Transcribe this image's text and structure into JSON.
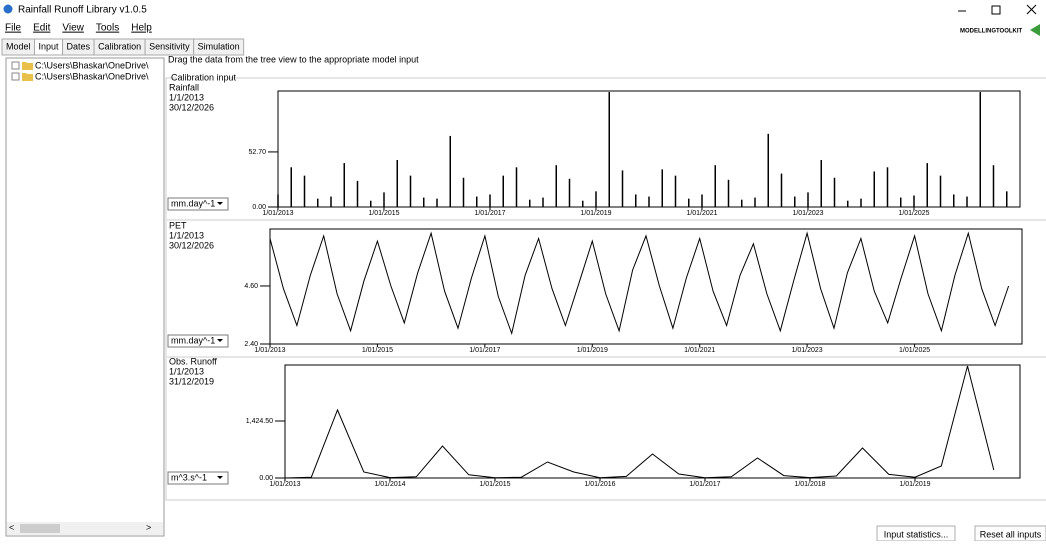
{
  "window_title": "Rainfall Runoff Library v1.0.5",
  "logo_text": "MODELLINGTOOLKIT",
  "menu": [
    "File",
    "Edit",
    "View",
    "Tools",
    "Help"
  ],
  "tabs": [
    "Model",
    "Input",
    "Dates",
    "Calibration",
    "Sensitivity",
    "Simulation"
  ],
  "tree": [
    "C:\\Users\\Bhaskar\\OneDrive\\",
    "C:\\Users\\Bhaskar\\OneDrive\\"
  ],
  "instruction": "Drag the data from the tree view to the appropriate model input",
  "group_label": "Calibration input",
  "buttons": [
    "Input statistics...",
    "Reset all inputs"
  ],
  "chart_data": [
    {
      "type": "bar",
      "title": "Rainfall",
      "start_date": "1/1/2013",
      "end_date": "30/12/2026",
      "unit": "mm.day^-1",
      "color": "#000000",
      "xlim": [
        2013,
        2027
      ],
      "ylim": [
        0,
        111
      ],
      "yticks": [
        {
          "value": 0,
          "label": "0.00"
        },
        {
          "value": 52.7,
          "label": "52.70"
        }
      ],
      "xticks": [
        {
          "value": 2013,
          "label": "1/01/2013"
        },
        {
          "value": 2015,
          "label": "1/01/2015"
        },
        {
          "value": 2017,
          "label": "1/01/2017"
        },
        {
          "value": 2019,
          "label": "1/01/2019"
        },
        {
          "value": 2021,
          "label": "1/01/2021"
        },
        {
          "value": 2023,
          "label": "1/01/2023"
        },
        {
          "value": 2025,
          "label": "1/01/2025"
        }
      ],
      "x": [
        2013,
        2013.25,
        2013.5,
        2013.75,
        2014,
        2014.25,
        2014.5,
        2014.75,
        2015,
        2015.25,
        2015.5,
        2015.75,
        2016,
        2016.25,
        2016.5,
        2016.75,
        2017,
        2017.25,
        2017.5,
        2017.75,
        2018,
        2018.25,
        2018.5,
        2018.75,
        2019,
        2019.25,
        2019.5,
        2019.75,
        2020,
        2020.25,
        2020.5,
        2020.75,
        2021,
        2021.25,
        2021.5,
        2021.75,
        2022,
        2022.25,
        2022.5,
        2022.75,
        2023,
        2023.25,
        2023.5,
        2023.75,
        2024,
        2024.25,
        2024.5,
        2024.75,
        2025,
        2025.25,
        2025.5,
        2025.75,
        2026,
        2026.25,
        2026.5,
        2026.75
      ],
      "values": [
        12,
        38,
        30,
        8,
        10,
        42,
        25,
        6,
        14,
        45,
        30,
        9,
        8,
        68,
        28,
        10,
        12,
        30,
        38,
        7,
        9,
        40,
        27,
        6,
        15,
        110,
        35,
        12,
        10,
        36,
        30,
        8,
        12,
        40,
        26,
        7,
        9,
        70,
        32,
        10,
        14,
        45,
        28,
        6,
        8,
        34,
        38,
        9,
        11,
        42,
        30,
        12,
        10,
        110,
        40,
        15
      ]
    },
    {
      "type": "line",
      "title": "PET",
      "start_date": "1/1/2013",
      "end_date": "30/12/2026",
      "unit": "mm.day^-1",
      "color": "#000000",
      "xlim": [
        2013,
        2027
      ],
      "ylim": [
        2.4,
        6.76
      ],
      "yticks": [
        {
          "value": 2.4,
          "label": "2.40"
        },
        {
          "value": 4.6,
          "label": "4.60"
        }
      ],
      "xticks": [
        {
          "value": 2013,
          "label": "1/01/2013"
        },
        {
          "value": 2015,
          "label": "1/01/2015"
        },
        {
          "value": 2017,
          "label": "1/01/2017"
        },
        {
          "value": 2019,
          "label": "1/01/2019"
        },
        {
          "value": 2021,
          "label": "1/01/2021"
        },
        {
          "value": 2023,
          "label": "1/01/2023"
        },
        {
          "value": 2025,
          "label": "1/01/2025"
        }
      ],
      "x": [
        2013,
        2013.25,
        2013.5,
        2013.75,
        2014,
        2014.25,
        2014.5,
        2014.75,
        2015,
        2015.25,
        2015.5,
        2015.75,
        2016,
        2016.25,
        2016.5,
        2016.75,
        2017,
        2017.25,
        2017.5,
        2017.75,
        2018,
        2018.25,
        2018.5,
        2018.75,
        2019,
        2019.25,
        2019.5,
        2019.75,
        2020,
        2020.25,
        2020.5,
        2020.75,
        2021,
        2021.25,
        2021.5,
        2021.75,
        2022,
        2022.25,
        2022.5,
        2022.75,
        2023,
        2023.25,
        2023.5,
        2023.75,
        2024,
        2024.25,
        2024.5,
        2024.75,
        2025,
        2025.25,
        2025.5,
        2025.75,
        2026,
        2026.25,
        2026.5,
        2026.75
      ],
      "values": [
        6.4,
        4.5,
        3.1,
        5.0,
        6.5,
        4.3,
        2.9,
        4.8,
        6.3,
        4.6,
        3.2,
        5.1,
        6.6,
        4.4,
        3.0,
        4.9,
        6.5,
        4.2,
        2.8,
        5.0,
        6.4,
        4.5,
        3.1,
        4.7,
        6.3,
        4.3,
        2.9,
        5.2,
        6.5,
        4.6,
        3.0,
        4.9,
        6.4,
        4.4,
        3.1,
        5.0,
        6.2,
        4.3,
        2.9,
        4.8,
        6.6,
        4.5,
        3.0,
        5.1,
        6.4,
        4.4,
        3.2,
        4.9,
        6.5,
        4.3,
        2.9,
        5.0,
        6.6,
        4.5,
        3.1,
        4.6
      ]
    },
    {
      "type": "line",
      "title": "Obs. Runoff",
      "start_date": "1/1/2013",
      "end_date": "31/12/2019",
      "unit": "m^3.s^-1",
      "color": "#000000",
      "xlim": [
        2013,
        2020
      ],
      "ylim": [
        0,
        2824
      ],
      "yticks": [
        {
          "value": 0,
          "label": "0.00"
        },
        {
          "value": 1424.5,
          "label": "1,424.50"
        }
      ],
      "xticks": [
        {
          "value": 2013,
          "label": "1/01/2013"
        },
        {
          "value": 2014,
          "label": "1/01/2014"
        },
        {
          "value": 2015,
          "label": "1/01/2015"
        },
        {
          "value": 2016,
          "label": "1/01/2016"
        },
        {
          "value": 2017,
          "label": "1/01/2017"
        },
        {
          "value": 2018,
          "label": "1/01/2018"
        },
        {
          "value": 2019,
          "label": "1/01/2019"
        }
      ],
      "x": [
        2013,
        2013.25,
        2013.5,
        2013.75,
        2014,
        2014.25,
        2014.5,
        2014.75,
        2015,
        2015.25,
        2015.5,
        2015.75,
        2016,
        2016.25,
        2016.5,
        2016.75,
        2017,
        2017.25,
        2017.5,
        2017.75,
        2018,
        2018.25,
        2018.5,
        2018.75,
        2019,
        2019.25,
        2019.5,
        2019.75
      ],
      "values": [
        0,
        20,
        1700,
        150,
        10,
        30,
        800,
        80,
        5,
        20,
        400,
        150,
        5,
        40,
        600,
        100,
        5,
        30,
        500,
        60,
        10,
        50,
        750,
        90,
        20,
        300,
        2800,
        200
      ]
    }
  ]
}
